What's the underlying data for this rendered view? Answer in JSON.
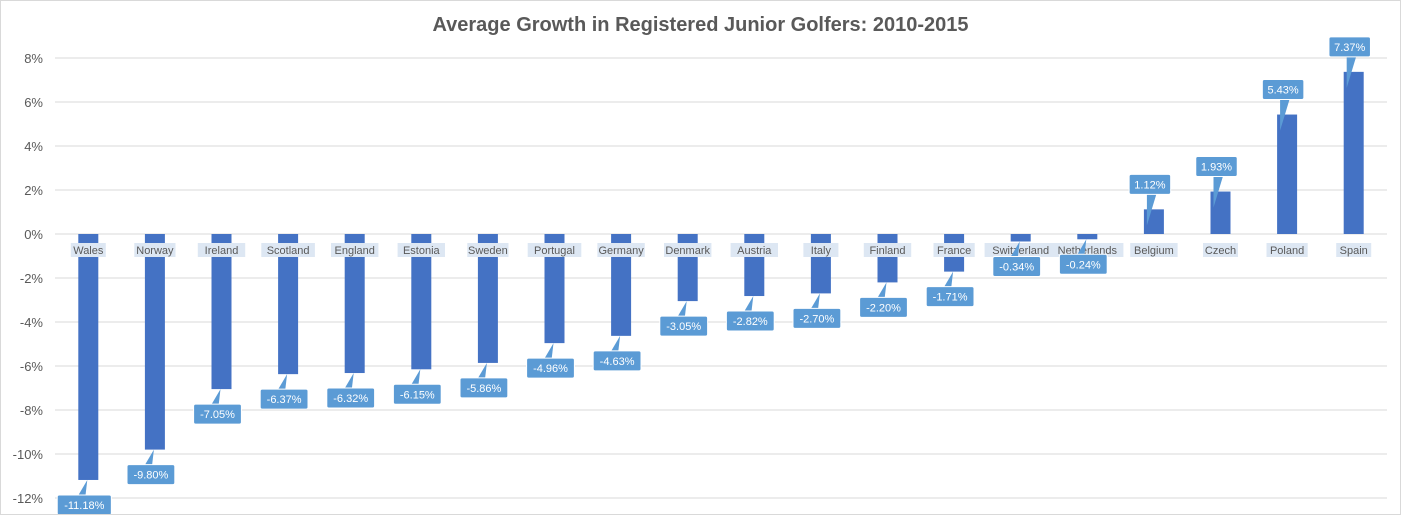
{
  "chart_data": {
    "type": "bar",
    "title": "Average Growth in Registered Junior Golfers: 2010-2015",
    "xlabel": "",
    "ylabel": "",
    "ylim": [
      -12,
      8
    ],
    "yticks": [
      "8%",
      "6%",
      "4%",
      "2%",
      "0%",
      "-2%",
      "-4%",
      "-6%",
      "-8%",
      "-10%",
      "-12%"
    ],
    "grid": true,
    "legend": "none",
    "bar_color": "#4472c4",
    "label_color": "#5b9bd5",
    "categories": [
      "Wales",
      "Norway",
      "Ireland",
      "Scotland",
      "England",
      "Estonia",
      "Sweden",
      "Portugal",
      "Germany",
      "Denmark",
      "Austria",
      "Italy",
      "Finland",
      "France",
      "Switzerland",
      "Netherlands",
      "Belgium",
      "Czech",
      "Poland",
      "Spain"
    ],
    "values": [
      -11.18,
      -9.8,
      -7.05,
      -6.37,
      -6.32,
      -6.15,
      -5.86,
      -4.96,
      -4.63,
      -3.05,
      -2.82,
      -2.7,
      -2.2,
      -1.71,
      -0.34,
      -0.24,
      1.12,
      1.93,
      5.43,
      7.37
    ],
    "data_labels": [
      "-11.18%",
      "-9.80%",
      "-7.05%",
      "-6.37%",
      "-6.32%",
      "-6.15%",
      "-5.86%",
      "-4.96%",
      "-4.63%",
      "-3.05%",
      "-2.82%",
      "-2.70%",
      "-2.20%",
      "-1.71%",
      "-0.34%",
      "-0.24%",
      "1.12%",
      "1.93%",
      "5.43%",
      "7.37%"
    ]
  }
}
